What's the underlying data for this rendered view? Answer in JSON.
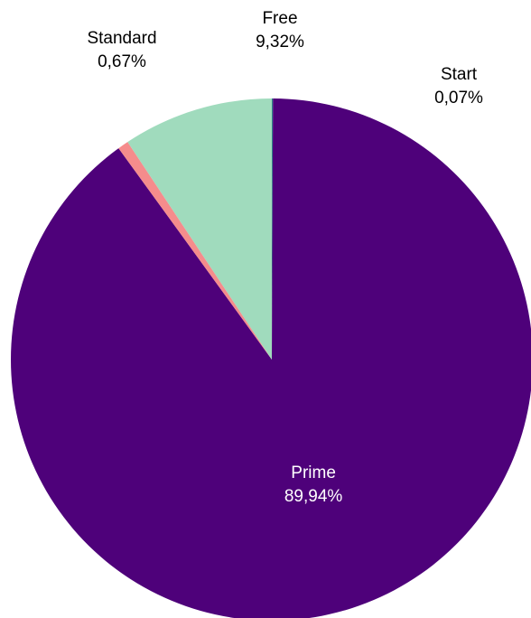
{
  "chart_data": {
    "type": "pie",
    "title": "",
    "start_angle_deg": 0,
    "direction": "clockwise",
    "slices": [
      {
        "name": "Start",
        "value": 0.07,
        "label": "0,07%",
        "color": "#2d7f88",
        "label_color": "#000000",
        "label_placement": "outside"
      },
      {
        "name": "Prime",
        "value": 89.94,
        "label": "89,94%",
        "color": "#4e017a",
        "label_color": "#ffffff",
        "label_placement": "inside"
      },
      {
        "name": "Standard",
        "value": 0.67,
        "label": "0,67%",
        "color": "#f58c8c",
        "label_color": "#000000",
        "label_placement": "outside"
      },
      {
        "name": "Free",
        "value": 9.32,
        "label": "9,32%",
        "color": "#a0dbbd",
        "label_color": "#000000",
        "label_placement": "outside"
      }
    ]
  }
}
